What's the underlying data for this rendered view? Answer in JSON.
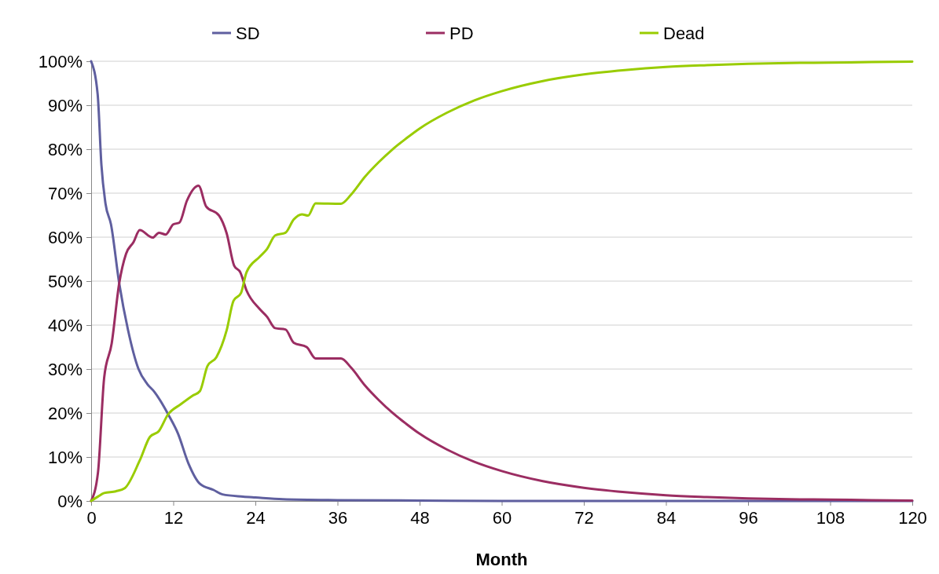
{
  "chart_data": {
    "type": "line",
    "xlabel": "Month",
    "xlim": [
      0,
      120
    ],
    "xticks": [
      0,
      12,
      24,
      36,
      48,
      60,
      72,
      84,
      96,
      108,
      120
    ],
    "ylim": [
      0,
      100
    ],
    "yticks": [
      {
        "value": 0,
        "label": "0%"
      },
      {
        "value": 10,
        "label": "10%"
      },
      {
        "value": 20,
        "label": "20%"
      },
      {
        "value": 30,
        "label": "30%"
      },
      {
        "value": 40,
        "label": "40%"
      },
      {
        "value": 50,
        "label": "50%"
      },
      {
        "value": 60,
        "label": "60%"
      },
      {
        "value": 70,
        "label": "70%"
      },
      {
        "value": 80,
        "label": "80%"
      },
      {
        "value": 90,
        "label": "90%"
      },
      {
        "value": 100,
        "label": "100%"
      }
    ],
    "grid": "y",
    "legend": "top",
    "marker": "none",
    "line_style": "solid",
    "series": [
      {
        "name": "SD",
        "color": "#5f5f9f",
        "x": [
          0,
          0.95,
          1.5,
          2.1,
          2.9,
          4.1,
          5.4,
          6.9,
          8.2,
          9.2,
          11.4,
          12.7,
          14.2,
          15.9,
          17.9,
          19.2,
          22.2,
          24,
          28,
          36,
          48,
          60,
          84,
          120
        ],
        "values": [
          100,
          92.5,
          76.4,
          67.6,
          62.9,
          49.5,
          38.8,
          30.1,
          26.6,
          24.9,
          19.3,
          15.3,
          8.6,
          3.9,
          2.5,
          1.5,
          1,
          0.8,
          0.4,
          0.2,
          0.1,
          0,
          0,
          0
        ]
      },
      {
        "name": "PD",
        "color": "#9b2d62",
        "x": [
          0,
          1,
          1.9,
          3,
          4.1,
          5.1,
          6.2,
          7.1,
          9,
          9.9,
          10.9,
          12,
          12.9,
          14,
          15.7,
          16.8,
          18.7,
          19.8,
          20.9,
          21.8,
          22.7,
          24.6,
          25.7,
          26.9,
          28.4,
          29.6,
          31.5,
          32.8,
          36.5,
          38,
          40,
          42,
          44,
          46,
          48,
          52,
          56,
          60,
          66,
          72,
          78,
          84,
          90,
          96,
          102,
          108,
          114,
          120
        ],
        "values": [
          0,
          6.5,
          28,
          35.8,
          49.5,
          56.2,
          58.9,
          61.6,
          59.9,
          61,
          60.6,
          62.9,
          63.3,
          68.3,
          71.7,
          67,
          64.9,
          60.9,
          53.5,
          52,
          47.9,
          43.7,
          41.9,
          39.3,
          39,
          36,
          35,
          32.4,
          32.4,
          30.3,
          26.3,
          23,
          20.1,
          17.6,
          15.3,
          11.7,
          8.9,
          6.8,
          4.5,
          3,
          2,
          1.3,
          0.9,
          0.6,
          0.4,
          0.3,
          0.2,
          0.1
        ]
      },
      {
        "name": "Dead",
        "color": "#99cc00",
        "x": [
          0,
          1,
          1.9,
          3.6,
          4.9,
          7.1,
          8.6,
          9.9,
          11.2,
          13.1,
          14.9,
          15.9,
          17,
          18.3,
          19.8,
          20.8,
          21.9,
          22.7,
          24.6,
          25.7,
          26.9,
          28.4,
          29.6,
          30.8,
          31.7,
          32.8,
          36.5,
          38,
          40,
          42,
          44,
          46,
          48,
          52,
          56,
          60,
          66,
          72,
          78,
          84,
          90,
          96,
          102,
          108,
          114,
          120
        ],
        "values": [
          0,
          1,
          1.8,
          2.2,
          2.9,
          9.2,
          14.6,
          15.9,
          19.6,
          22,
          24,
          25,
          30.7,
          32.7,
          38.8,
          45.5,
          47.3,
          52,
          55.5,
          57.3,
          60.4,
          61,
          64,
          65.2,
          64.9,
          67.7,
          67.6,
          69.7,
          73.7,
          77,
          79.9,
          82.4,
          84.7,
          88.3,
          91.1,
          93.2,
          95.5,
          97,
          98,
          98.7,
          99.1,
          99.4,
          99.6,
          99.7,
          99.8,
          99.9
        ]
      }
    ]
  }
}
